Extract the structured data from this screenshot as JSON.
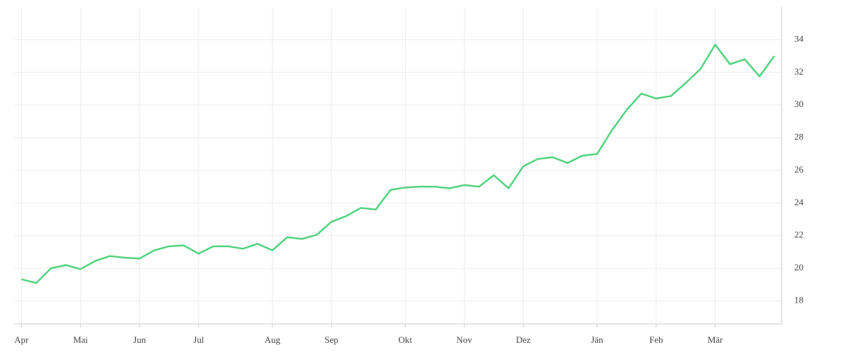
{
  "chart_data": {
    "type": "line",
    "categories": [
      "Apr",
      null,
      null,
      null,
      "Mai",
      null,
      null,
      null,
      "Jun",
      null,
      null,
      null,
      "Jul",
      null,
      null,
      null,
      null,
      "Aug",
      null,
      null,
      null,
      "Sep",
      null,
      null,
      null,
      null,
      "Okt",
      null,
      null,
      null,
      "Nov",
      null,
      null,
      null,
      "Dez",
      null,
      null,
      null,
      null,
      "Jän",
      null,
      null,
      null,
      "Feb",
      null,
      null,
      null,
      "Mär",
      null,
      null,
      null,
      null
    ],
    "series": [
      {
        "color": "#53d27f",
        "values": [
          19.33,
          19.1,
          20.0,
          20.2,
          19.95,
          20.45,
          20.75,
          20.65,
          20.6,
          21.1,
          21.35,
          21.4,
          20.9,
          21.35,
          21.35,
          21.2,
          21.5,
          21.1,
          21.9,
          21.8,
          22.05,
          22.85,
          23.2,
          23.7,
          23.6,
          24.8,
          24.95,
          25.0,
          25.0,
          24.9,
          25.1,
          25.0,
          25.7,
          24.9,
          26.25,
          26.7,
          26.8,
          26.45,
          26.9,
          27.0,
          28.45,
          29.7,
          30.7,
          30.4,
          30.55,
          31.35,
          32.2,
          33.7,
          32.5,
          32.8,
          31.75,
          33.0
        ]
      }
    ],
    "ylim": [
      16.6,
      36
    ],
    "yticks": [
      18,
      20,
      22,
      24,
      26,
      28,
      30,
      32,
      34
    ],
    "grid": true,
    "y_axis_side": "right"
  }
}
